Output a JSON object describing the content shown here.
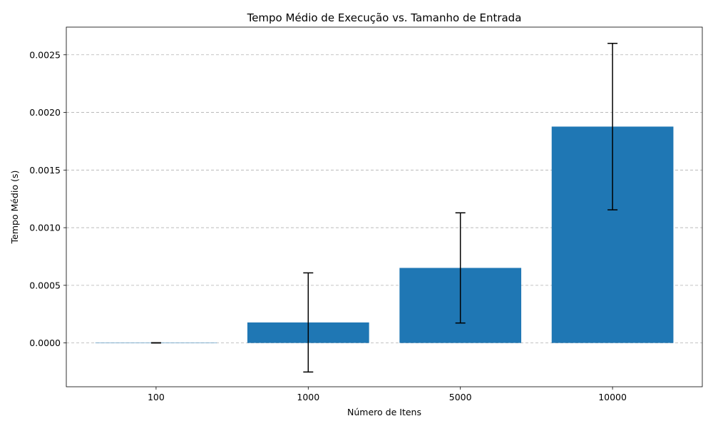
{
  "chart_data": {
    "type": "bar",
    "title": "Tempo Médio de Execução vs. Tamanho de Entrada",
    "xlabel": "Número de Itens",
    "ylabel": "Tempo Médio (s)",
    "categories": [
      "100",
      "1000",
      "5000",
      "10000"
    ],
    "values": [
      8e-07,
      0.000178,
      0.000651,
      0.001877
    ],
    "errors": [
      1.2e-06,
      0.00043,
      0.000478,
      0.000722
    ],
    "ylim": [
      -0.00038,
      0.00274
    ],
    "yticks": [
      0.0,
      0.0005,
      0.001,
      0.0015,
      0.002,
      0.0025
    ],
    "ytick_labels": [
      "0.0000",
      "0.0005",
      "0.0010",
      "0.0015",
      "0.0020",
      "0.0025"
    ],
    "grid": "y-dashed",
    "bar_color": "#1f77b4",
    "error_color": "#000000"
  }
}
